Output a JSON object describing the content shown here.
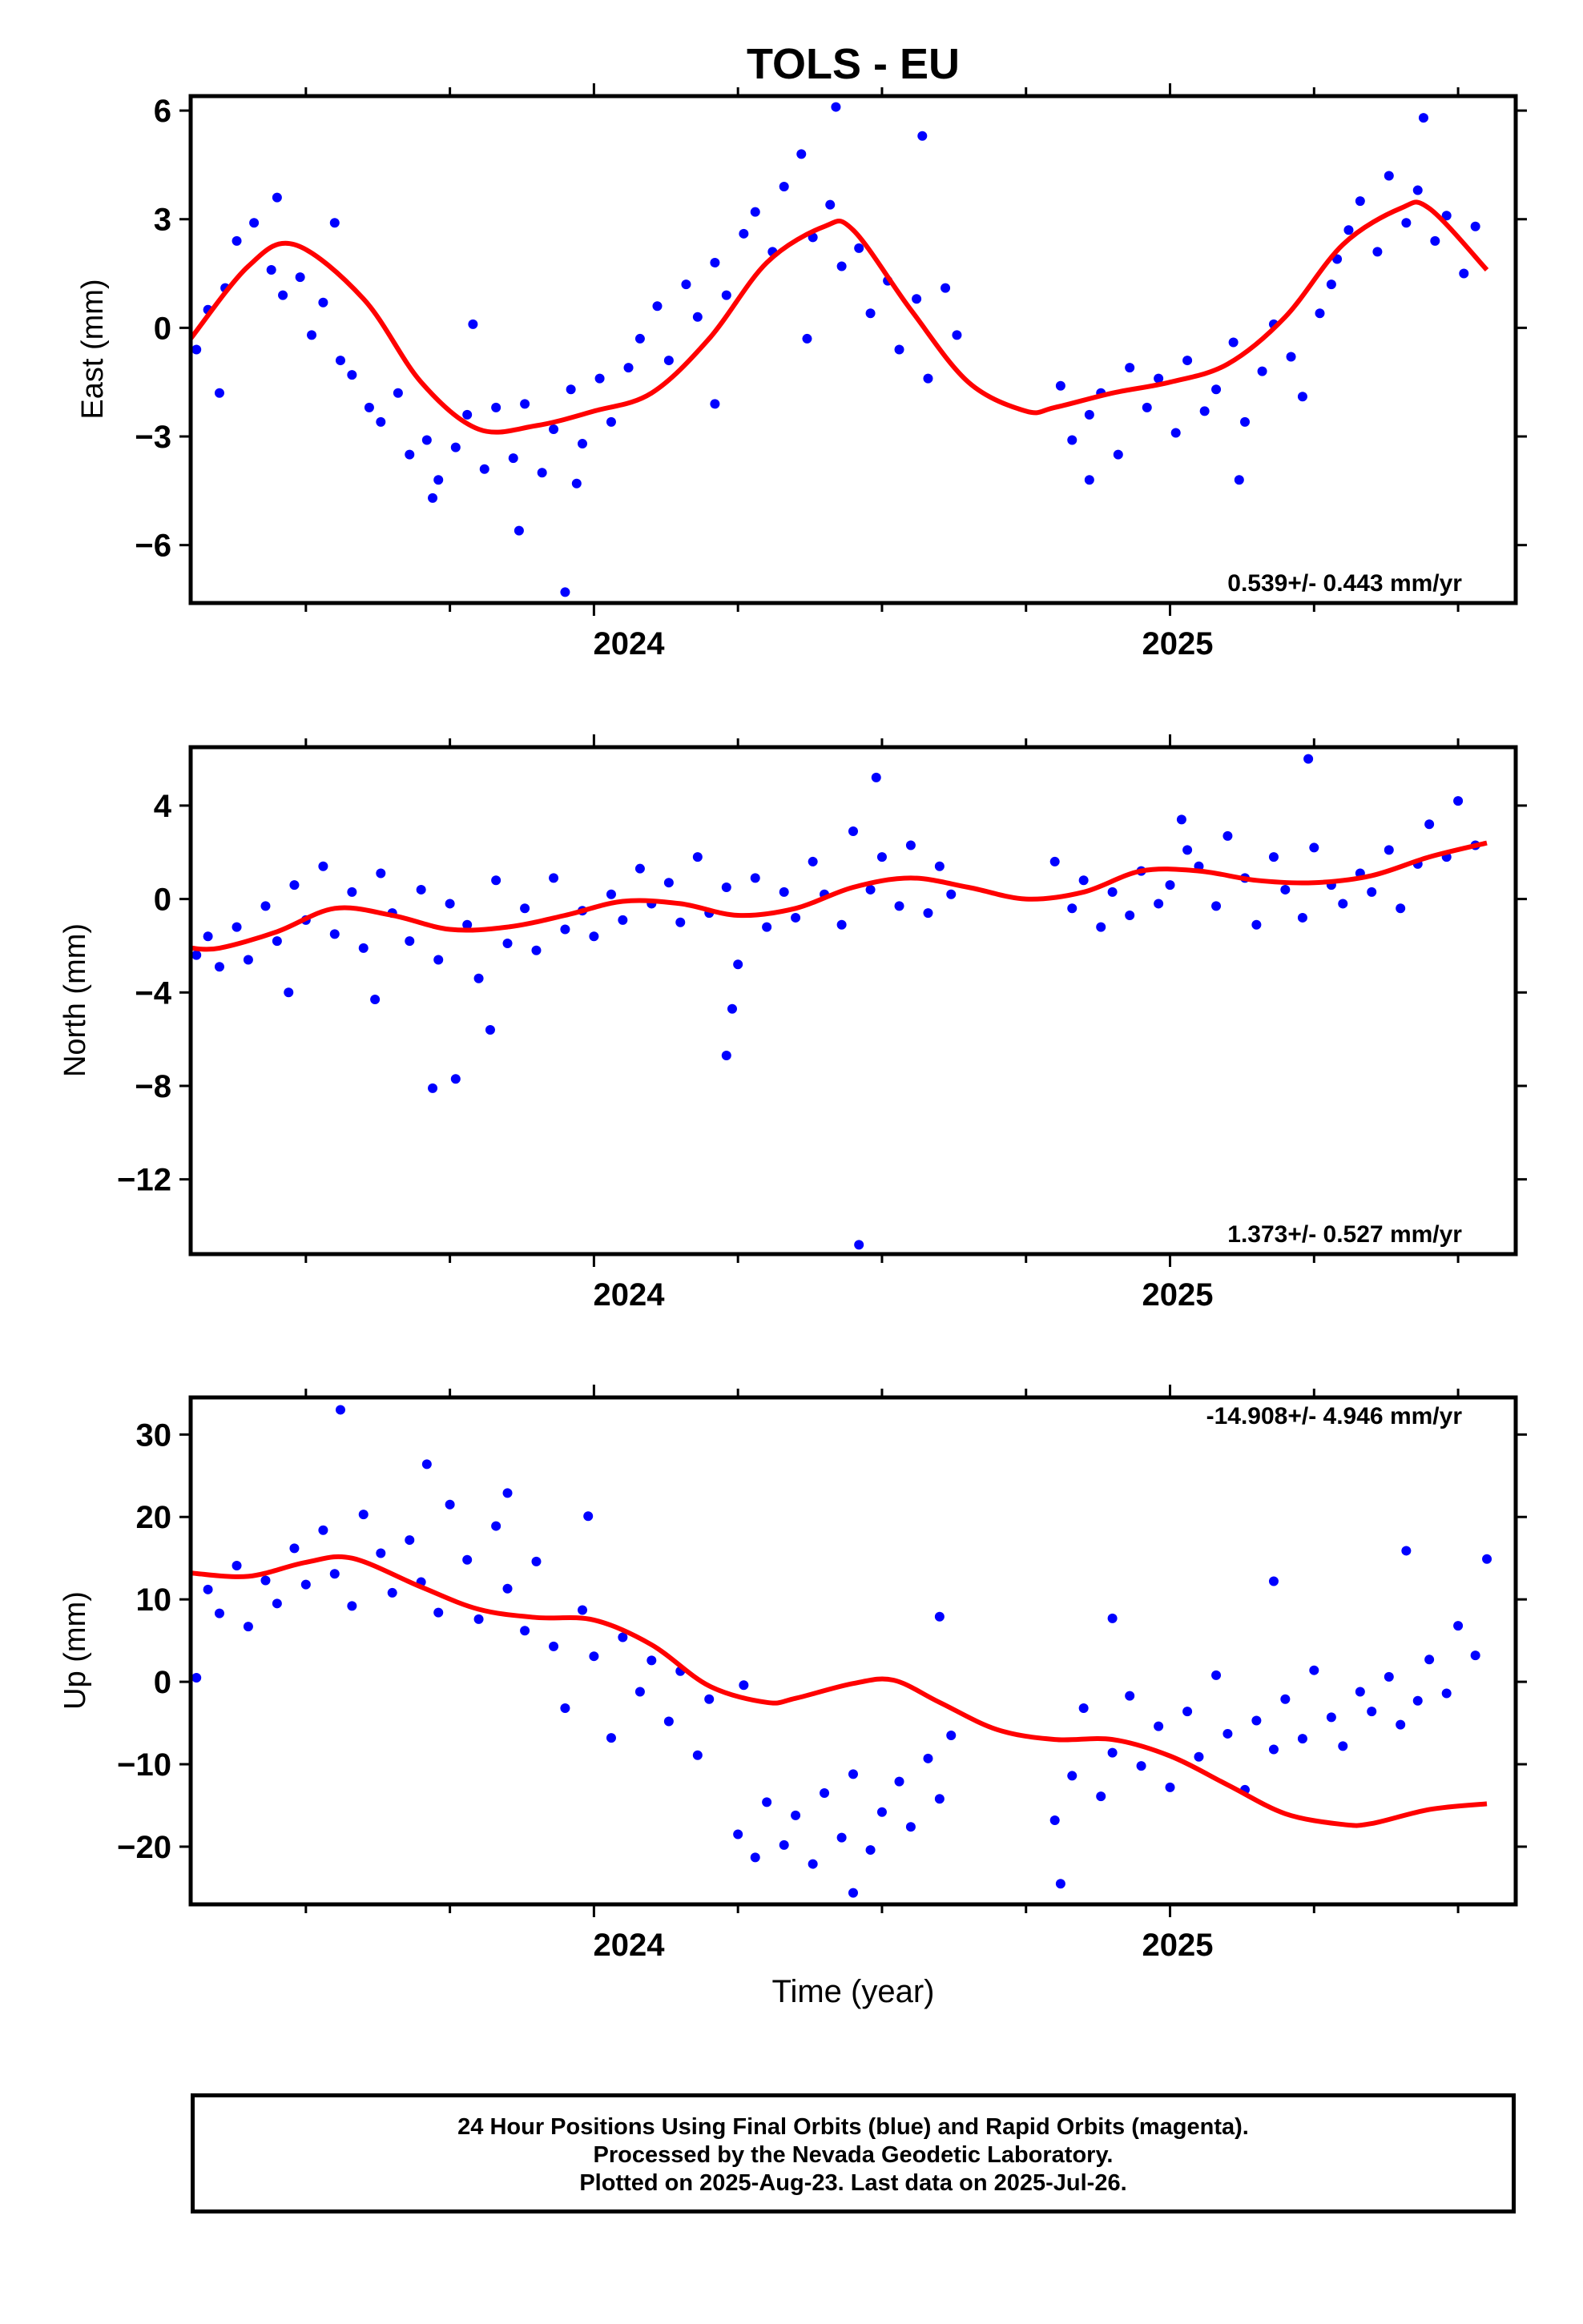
{
  "title": "TOLS - EU",
  "colors": {
    "data": "#0000ff",
    "model": "#ff0000",
    "frame": "#000000"
  },
  "xaxis": {
    "label": "Time (year)",
    "range": [
      2023.3,
      2025.6
    ],
    "tick_labels": [
      "2024",
      "2025"
    ]
  },
  "footer": {
    "line1": "24 Hour Positions Using Final Orbits (blue) and Rapid Orbits (magenta).",
    "line2": "Processed by the Nevada Geodetic Laboratory.",
    "line3": "Plotted on 2025-Aug-23. Last data on 2025-Jul-26."
  },
  "chart_data": [
    {
      "type": "scatter",
      "ylabel": "East (mm)",
      "ylim": [
        -7.6,
        6.4
      ],
      "yticks": [
        -6,
        -3,
        0,
        3,
        6
      ],
      "ytick_labels": [
        "−6",
        "−3",
        "0",
        "3",
        "6"
      ],
      "rate": "0.539+/- 0.443 mm/yr",
      "rate_position": "bottom-right",
      "model": {
        "x": [
          2023.3,
          2023.4,
          2023.48,
          2023.6,
          2023.7,
          2023.8,
          2023.9,
          2024.0,
          2024.1,
          2024.2,
          2024.3,
          2024.4,
          2024.45,
          2024.55,
          2024.65,
          2024.75,
          2024.8,
          2024.9,
          2025.0,
          2025.1,
          2025.2,
          2025.3,
          2025.4,
          2025.45,
          2025.55
        ],
        "y": [
          -0.3,
          1.7,
          2.3,
          0.8,
          -1.5,
          -2.8,
          -2.7,
          -2.3,
          -1.8,
          -0.3,
          1.8,
          2.8,
          2.7,
          0.5,
          -1.5,
          -2.3,
          -2.2,
          -1.8,
          -1.5,
          -1.0,
          0.3,
          2.3,
          3.3,
          3.3,
          1.6
        ]
      },
      "points": {
        "x": [
          2023.31,
          2023.33,
          2023.36,
          2023.38,
          2023.41,
          2023.44,
          2023.46,
          2023.49,
          2023.51,
          2023.53,
          2023.56,
          2023.58,
          2023.61,
          2023.63,
          2023.66,
          2023.68,
          2023.71,
          2023.73,
          2023.76,
          2023.78,
          2023.81,
          2023.83,
          2023.86,
          2023.88,
          2023.91,
          2023.93,
          2023.96,
          2023.98,
          2024.01,
          2024.03,
          2024.06,
          2024.08,
          2024.11,
          2024.13,
          2024.16,
          2024.18,
          2024.21,
          2024.23,
          2024.26,
          2024.28,
          2024.31,
          2024.33,
          2024.36,
          2024.38,
          2024.41,
          2024.43,
          2024.46,
          2024.48,
          2024.51,
          2024.53,
          2024.56,
          2024.58,
          2024.61,
          2024.63,
          2024.81,
          2024.83,
          2024.86,
          2024.88,
          2024.91,
          2024.93,
          2024.96,
          2024.98,
          2025.01,
          2025.03,
          2025.06,
          2025.08,
          2025.11,
          2025.13,
          2025.16,
          2025.18,
          2025.21,
          2025.23,
          2025.26,
          2025.28,
          2025.31,
          2025.33,
          2025.36,
          2025.38,
          2025.41,
          2025.43,
          2025.46,
          2025.48,
          2025.51,
          2025.53,
          2023.35,
          2023.45,
          2023.55,
          2023.72,
          2023.87,
          2023.97,
          2024.21,
          2024.42,
          2024.57,
          2024.86,
          2025.12,
          2025.29,
          2025.44,
          2023.79,
          2023.95,
          2024.37
        ],
        "y": [
          -0.6,
          0.5,
          1.1,
          2.4,
          2.9,
          1.6,
          0.9,
          1.4,
          -0.2,
          0.7,
          -0.9,
          -1.3,
          -2.2,
          -2.6,
          -1.8,
          -3.5,
          -3.1,
          -4.2,
          -3.3,
          -2.4,
          -3.9,
          -2.2,
          -3.6,
          -2.1,
          -4.0,
          -2.8,
          -1.7,
          -3.2,
          -1.4,
          -2.6,
          -1.1,
          -0.3,
          0.6,
          -0.9,
          1.2,
          0.3,
          1.8,
          0.9,
          2.6,
          3.2,
          2.1,
          3.9,
          4.8,
          2.5,
          3.4,
          1.7,
          2.2,
          0.4,
          1.3,
          -0.6,
          0.8,
          -1.4,
          1.1,
          -0.2,
          -1.6,
          -3.1,
          -2.4,
          -1.8,
          -3.5,
          -1.1,
          -2.2,
          -1.4,
          -2.9,
          -0.9,
          -2.3,
          -1.7,
          -0.4,
          -2.6,
          -1.2,
          0.1,
          -0.8,
          -1.9,
          0.4,
          1.2,
          2.7,
          3.5,
          2.1,
          4.2,
          2.9,
          3.8,
          2.4,
          3.1,
          1.5,
          2.8,
          -1.8,
          3.6,
          2.9,
          -4.7,
          -5.6,
          -4.3,
          -2.1,
          6.1,
          5.3,
          -4.2,
          -4.2,
          1.9,
          5.8,
          0.1,
          -7.3,
          -0.3
        ]
      }
    },
    {
      "type": "scatter",
      "ylabel": "North (mm)",
      "ylim": [
        -15.2,
        6.5
      ],
      "yticks": [
        -12,
        -8,
        -4,
        0,
        4
      ],
      "ytick_labels": [
        "−12",
        "−8",
        "−4",
        "0",
        "4"
      ],
      "rate": "1.373+/- 0.527 mm/yr",
      "rate_position": "bottom-right",
      "model": {
        "x": [
          2023.3,
          2023.35,
          2023.45,
          2023.55,
          2023.65,
          2023.75,
          2023.85,
          2023.95,
          2024.05,
          2024.15,
          2024.25,
          2024.35,
          2024.45,
          2024.55,
          2024.65,
          2024.75,
          2024.85,
          2024.95,
          2025.05,
          2025.15,
          2025.25,
          2025.35,
          2025.45,
          2025.55
        ],
        "y": [
          -2.1,
          -2.1,
          -1.4,
          -0.4,
          -0.7,
          -1.3,
          -1.2,
          -0.7,
          -0.1,
          -0.2,
          -0.7,
          -0.4,
          0.5,
          0.9,
          0.5,
          0.0,
          0.3,
          1.2,
          1.2,
          0.8,
          0.7,
          1.0,
          1.8,
          2.4
        ]
      },
      "points": {
        "x": [
          2023.31,
          2023.33,
          2023.35,
          2023.38,
          2023.4,
          2023.43,
          2023.45,
          2023.48,
          2023.5,
          2023.53,
          2023.55,
          2023.58,
          2023.6,
          2023.63,
          2023.65,
          2023.68,
          2023.7,
          2023.73,
          2023.75,
          2023.78,
          2023.8,
          2023.83,
          2023.85,
          2023.88,
          2023.9,
          2023.93,
          2023.95,
          2023.98,
          2024.0,
          2024.03,
          2024.05,
          2024.08,
          2024.1,
          2024.13,
          2024.15,
          2024.18,
          2024.2,
          2024.23,
          2024.25,
          2024.28,
          2024.3,
          2024.33,
          2024.35,
          2024.38,
          2024.4,
          2024.43,
          2024.45,
          2024.48,
          2024.5,
          2024.53,
          2024.55,
          2024.58,
          2024.6,
          2024.62,
          2024.8,
          2024.83,
          2024.85,
          2024.88,
          2024.9,
          2024.93,
          2024.95,
          2024.98,
          2025.0,
          2025.03,
          2025.05,
          2025.08,
          2025.1,
          2025.13,
          2025.15,
          2025.18,
          2025.2,
          2025.23,
          2025.25,
          2025.28,
          2025.3,
          2025.33,
          2025.35,
          2025.38,
          2025.4,
          2025.43,
          2025.45,
          2025.48,
          2025.5,
          2025.53,
          2023.72,
          2023.76,
          2023.82,
          2024.23,
          2024.24,
          2024.49,
          2024.46,
          2025.24,
          2025.02,
          2023.62,
          2023.47
        ],
        "y": [
          -2.4,
          -1.6,
          -2.9,
          -1.2,
          -2.6,
          -0.3,
          -1.8,
          0.6,
          -0.9,
          1.4,
          -1.5,
          0.3,
          -2.1,
          1.1,
          -0.6,
          -1.8,
          0.4,
          -2.6,
          -0.2,
          -1.1,
          -3.4,
          0.8,
          -1.9,
          -0.4,
          -2.2,
          0.9,
          -1.3,
          -0.5,
          -1.6,
          0.2,
          -0.9,
          1.3,
          -0.2,
          0.7,
          -1.0,
          1.8,
          -0.6,
          0.5,
          -2.8,
          0.9,
          -1.2,
          0.3,
          -0.8,
          1.6,
          0.2,
          -1.1,
          2.9,
          0.4,
          1.8,
          -0.3,
          2.3,
          -0.6,
          1.4,
          0.2,
          1.6,
          -0.4,
          0.8,
          -1.2,
          0.3,
          -0.7,
          1.2,
          -0.2,
          0.6,
          2.1,
          1.4,
          -0.3,
          2.7,
          0.9,
          -1.1,
          1.8,
          0.4,
          -0.8,
          2.2,
          0.6,
          -0.2,
          1.1,
          0.3,
          2.1,
          -0.4,
          1.5,
          3.2,
          1.8,
          4.2,
          2.3,
          -8.1,
          -7.7,
          -5.6,
          -6.7,
          -4.7,
          5.2,
          -14.8,
          6.0,
          3.4,
          -4.3,
          -4.0
        ]
      }
    },
    {
      "type": "scatter",
      "ylabel": "Up (mm)",
      "ylim": [
        -27,
        34.5
      ],
      "yticks": [
        -20,
        -10,
        0,
        10,
        20,
        30
      ],
      "ytick_labels": [
        "−20",
        "−10",
        "0",
        "10",
        "20",
        "30"
      ],
      "rate": "-14.908+/- 4.946 mm/yr",
      "rate_position": "top-right",
      "model": {
        "x": [
          2023.3,
          2023.4,
          2023.5,
          2023.58,
          2023.7,
          2023.8,
          2023.9,
          2024.0,
          2024.1,
          2024.2,
          2024.3,
          2024.35,
          2024.45,
          2024.52,
          2024.6,
          2024.7,
          2024.8,
          2024.9,
          2025.0,
          2025.1,
          2025.2,
          2025.3,
          2025.35,
          2025.45,
          2025.55
        ],
        "y": [
          13.2,
          12.8,
          14.5,
          15.0,
          11.5,
          8.8,
          7.8,
          7.5,
          4.5,
          -0.5,
          -2.5,
          -2.0,
          -0.2,
          0.2,
          -2.5,
          -5.8,
          -7.0,
          -7.0,
          -9.0,
          -12.5,
          -16.0,
          -17.3,
          -17.2,
          -15.5,
          -14.8
        ]
      },
      "points": {
        "x": [
          2023.31,
          2023.33,
          2023.35,
          2023.38,
          2023.4,
          2023.43,
          2023.45,
          2023.48,
          2023.5,
          2023.53,
          2023.55,
          2023.58,
          2023.6,
          2023.63,
          2023.65,
          2023.68,
          2023.7,
          2023.73,
          2023.75,
          2023.78,
          2023.8,
          2023.83,
          2023.85,
          2023.88,
          2023.9,
          2023.93,
          2023.95,
          2023.98,
          2024.0,
          2024.03,
          2024.05,
          2024.08,
          2024.1,
          2024.13,
          2024.15,
          2024.18,
          2024.2,
          2024.25,
          2024.28,
          2024.3,
          2024.33,
          2024.35,
          2024.38,
          2024.4,
          2024.43,
          2024.45,
          2024.48,
          2024.5,
          2024.53,
          2024.55,
          2024.58,
          2024.6,
          2024.62,
          2024.8,
          2024.83,
          2024.85,
          2024.88,
          2024.9,
          2024.93,
          2024.95,
          2024.98,
          2025.0,
          2025.03,
          2025.05,
          2025.08,
          2025.1,
          2025.13,
          2025.15,
          2025.18,
          2025.2,
          2025.23,
          2025.25,
          2025.28,
          2025.3,
          2025.33,
          2025.35,
          2025.38,
          2025.4,
          2025.43,
          2025.45,
          2025.48,
          2025.5,
          2025.53,
          2023.56,
          2023.71,
          2023.85,
          2024.45,
          2024.81,
          2025.18,
          2025.41,
          2025.55,
          2023.99,
          2024.26,
          2024.6,
          2024.9
        ],
        "y": [
          0.5,
          11.2,
          8.3,
          14.1,
          6.7,
          12.3,
          9.5,
          16.2,
          11.8,
          18.4,
          13.1,
          9.2,
          20.3,
          15.6,
          10.8,
          17.2,
          12.1,
          8.4,
          21.5,
          14.8,
          7.6,
          18.9,
          11.3,
          6.2,
          14.6,
          4.3,
          -3.2,
          8.7,
          3.1,
          -6.8,
          5.4,
          -1.2,
          2.6,
          -4.8,
          1.3,
          -8.9,
          -2.1,
          -18.5,
          -21.3,
          -14.6,
          -19.8,
          -16.2,
          -22.1,
          -13.5,
          -18.9,
          -11.2,
          -20.4,
          -15.8,
          -12.1,
          -17.6,
          -9.3,
          -14.2,
          -6.5,
          -16.8,
          -11.4,
          -3.2,
          -13.9,
          -8.6,
          -1.7,
          -10.2,
          -5.4,
          -12.8,
          -3.6,
          -9.1,
          0.8,
          -6.3,
          -13.1,
          -4.7,
          -8.2,
          -2.1,
          -6.9,
          1.4,
          -4.3,
          -7.8,
          -1.2,
          -3.6,
          0.6,
          -5.2,
          -2.3,
          2.7,
          -1.4,
          6.8,
          3.2,
          33.0,
          26.4,
          22.9,
          -25.6,
          -24.5,
          12.2,
          15.9,
          14.9,
          20.1,
          -0.4,
          7.9,
          7.7
        ]
      }
    }
  ]
}
